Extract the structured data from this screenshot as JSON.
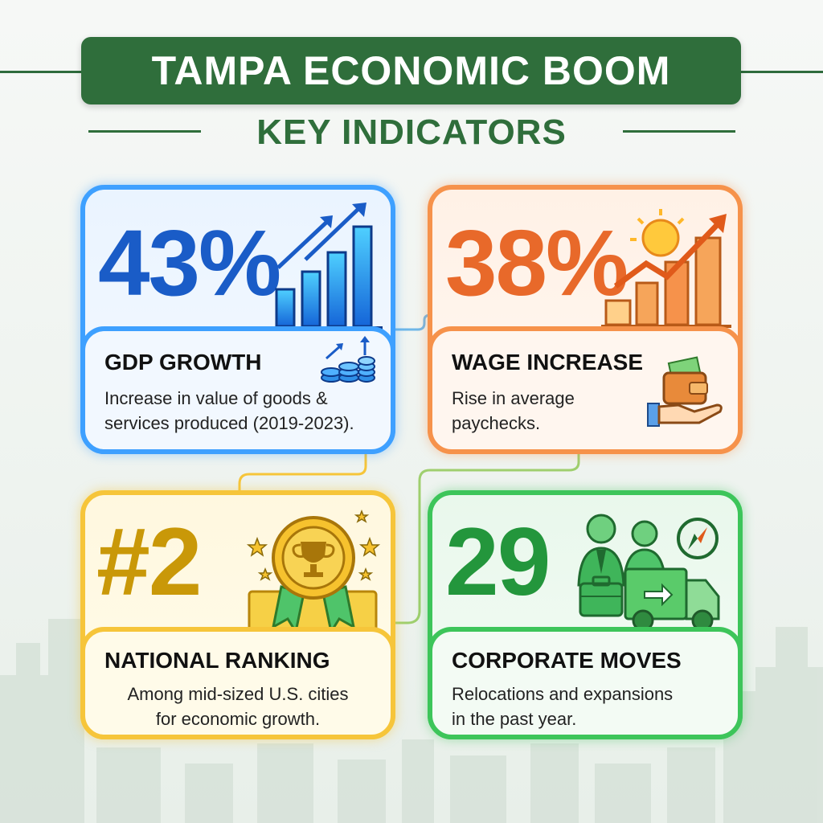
{
  "header": {
    "title": "TAMPA ECONOMIC BOOM",
    "subtitle": "KEY INDICATORS"
  },
  "cards": [
    {
      "stat": "43%",
      "label": "GDP GROWTH",
      "description_lines": [
        "Increase in value of goods &",
        "services produced (2019-2023)."
      ],
      "color": "#3ea0ff",
      "stat_color": "#1a5cc7",
      "icons": [
        "rising-bar-chart-icon",
        "coin-stack-growth-icon"
      ]
    },
    {
      "stat": "38%",
      "label": "WAGE INCREASE",
      "description_lines": [
        "Rise in average",
        "paychecks."
      ],
      "color": "#f6924b",
      "stat_color": "#e8692a",
      "icons": [
        "city-growth-sun-icon",
        "wallet-hand-icon"
      ]
    },
    {
      "stat": "#2",
      "label": "NATIONAL RANKING",
      "description_lines": [
        "Among mid-sized U.S. cities",
        "for economic growth."
      ],
      "color": "#f6c53a",
      "stat_color": "#c99808",
      "icons": [
        "trophy-medal-icon"
      ]
    },
    {
      "stat": "29",
      "label": "CORPORATE MOVES",
      "description_lines": [
        "Relocations and expansions",
        "in the past year."
      ],
      "color": "#3dc55a",
      "stat_color": "#23963c",
      "icons": [
        "business-relocation-icon"
      ]
    }
  ]
}
